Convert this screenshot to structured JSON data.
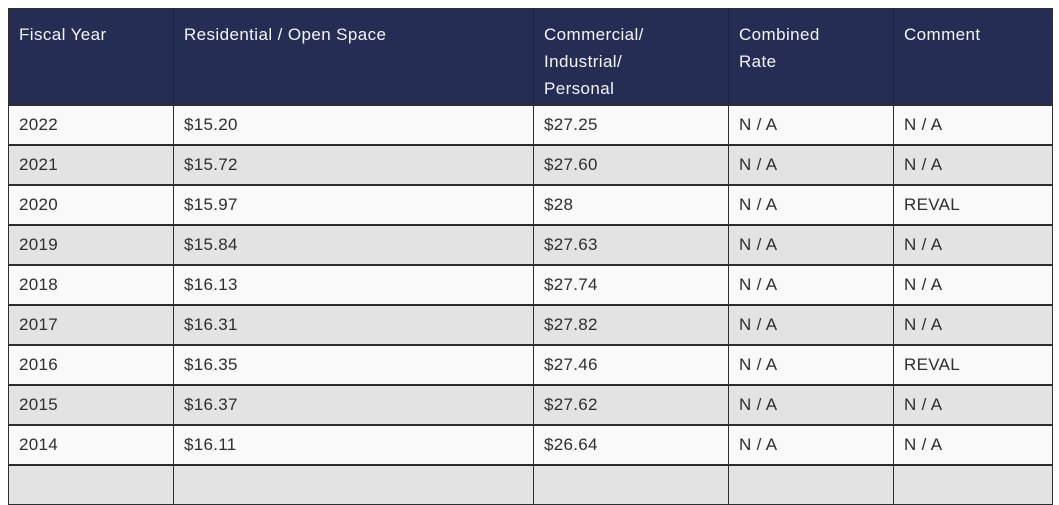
{
  "table": {
    "columns": [
      {
        "label": "Fiscal Year"
      },
      {
        "label": "Residential / Open Space"
      },
      {
        "label": "Commercial/\nIndustrial/\nPersonal"
      },
      {
        "label": "Combined\nRate"
      },
      {
        "label": "Comment"
      }
    ],
    "rows": [
      [
        "2022",
        "$15.20",
        "$27.25",
        "N / A",
        "N / A"
      ],
      [
        "2021",
        "$15.72",
        "$27.60",
        "N / A",
        "N / A"
      ],
      [
        "2020",
        "$15.97",
        "$28",
        "N / A",
        "REVAL"
      ],
      [
        "2019",
        "$15.84",
        "$27.63",
        "N / A",
        "N / A"
      ],
      [
        "2018",
        "$16.13",
        "$27.74",
        "N / A",
        "N / A"
      ],
      [
        "2017",
        "$16.31",
        "$27.82",
        "N / A",
        "N / A"
      ],
      [
        "2016",
        "$16.35",
        "$27.46",
        "N / A",
        "REVAL"
      ],
      [
        "2015",
        "$16.37",
        "$27.62",
        "N / A",
        "N / A"
      ],
      [
        "2014",
        "$16.11",
        "$26.64",
        "N / A",
        "N / A"
      ]
    ]
  },
  "colors": {
    "header_background": "#252d55",
    "header_text": "#f4f5f8",
    "row_background": "#f9f9f9",
    "row_alt_background": "#e3e3e3",
    "border": "#2d2d2d",
    "body_text": "#2e2e2e"
  }
}
